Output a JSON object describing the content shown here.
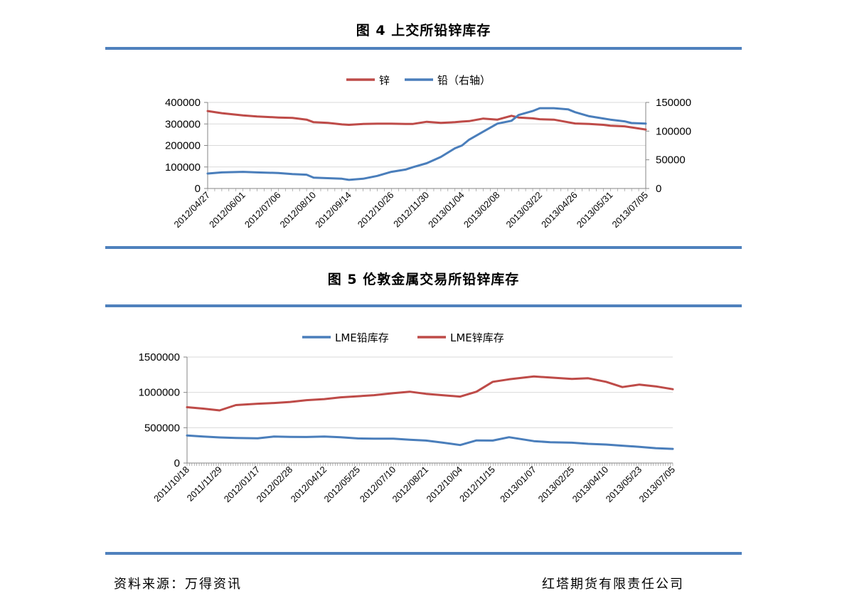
{
  "figure4": {
    "title": "图 4  上交所铅锌库存"
  },
  "figure5": {
    "title": "图 5  伦敦金属交易所铅锌库存"
  },
  "footer": {
    "source": "资料来源：万得资讯",
    "company": "红塔期货有限责任公司"
  },
  "colors": {
    "rule": "#4f81bd",
    "series_blue": "#4a7ebb",
    "series_red": "#be4b48",
    "grid": "#d9d9d9",
    "axis": "#868686"
  },
  "chart_data": [
    {
      "type": "line",
      "title": "",
      "legend_position": "top",
      "grid": true,
      "x_ticks": [
        "2012/04/27",
        "2012/06/01",
        "2012/07/06",
        "2012/08/10",
        "2012/09/14",
        "2012/10/26",
        "2012/11/30",
        "2013/01/04",
        "2013/02/08",
        "2013/03/22",
        "2013/04/26",
        "2013/05/31",
        "2013/07/05"
      ],
      "y_left": {
        "ticks": [
          "0",
          "100000",
          "200000",
          "300000",
          "400000"
        ],
        "lim": [
          0,
          400000
        ]
      },
      "y_right": {
        "ticks": [
          "0",
          "50000",
          "100000",
          "150000"
        ],
        "lim": [
          0,
          150000
        ]
      },
      "series": [
        {
          "name": "锌",
          "axis": "left",
          "color": "#be4b48",
          "x": [
            "2012/04/27",
            "2012/05/11",
            "2012/06/01",
            "2012/06/15",
            "2012/07/06",
            "2012/07/20",
            "2012/08/03",
            "2012/08/10",
            "2012/08/24",
            "2012/09/07",
            "2012/09/14",
            "2012/09/28",
            "2012/10/12",
            "2012/10/26",
            "2012/11/09",
            "2012/11/16",
            "2012/11/30",
            "2012/12/14",
            "2012/12/28",
            "2013/01/04",
            "2013/01/11",
            "2013/01/25",
            "2013/02/08",
            "2013/02/22",
            "2013/03/01",
            "2013/03/15",
            "2013/03/22",
            "2013/04/05",
            "2013/04/19",
            "2013/04/26",
            "2013/05/10",
            "2013/05/24",
            "2013/05/31",
            "2013/06/14",
            "2013/06/21",
            "2013/07/05"
          ],
          "y": [
            360000,
            350000,
            340000,
            335000,
            330000,
            328000,
            320000,
            308000,
            305000,
            298000,
            296000,
            300000,
            301000,
            301000,
            300000,
            300000,
            310000,
            305000,
            308000,
            311000,
            313000,
            325000,
            320000,
            338000,
            330000,
            326000,
            322000,
            320000,
            308000,
            302000,
            300000,
            296000,
            292000,
            289000,
            284000,
            274000
          ]
        },
        {
          "name": "铅（右轴）",
          "axis": "right",
          "color": "#4a7ebb",
          "x": [
            "2012/04/27",
            "2012/05/11",
            "2012/06/01",
            "2012/06/15",
            "2012/07/06",
            "2012/07/20",
            "2012/08/03",
            "2012/08/10",
            "2012/08/24",
            "2012/09/07",
            "2012/09/14",
            "2012/09/28",
            "2012/10/12",
            "2012/10/26",
            "2012/11/09",
            "2012/11/16",
            "2012/11/30",
            "2012/12/14",
            "2012/12/28",
            "2013/01/04",
            "2013/01/11",
            "2013/01/25",
            "2013/02/08",
            "2013/02/22",
            "2013/03/01",
            "2013/03/15",
            "2013/03/22",
            "2013/04/05",
            "2013/04/19",
            "2013/04/26",
            "2013/05/10",
            "2013/05/24",
            "2013/05/31",
            "2013/06/14",
            "2013/06/21",
            "2013/07/05"
          ],
          "y": [
            26000,
            28000,
            29000,
            28000,
            27000,
            25000,
            24000,
            19000,
            18000,
            17000,
            15000,
            17000,
            22000,
            29000,
            33000,
            37000,
            44000,
            55000,
            70000,
            75000,
            85000,
            99000,
            113000,
            118000,
            128000,
            135000,
            140000,
            140000,
            138000,
            133000,
            126000,
            122000,
            120000,
            117000,
            114000,
            113000
          ]
        }
      ]
    },
    {
      "type": "line",
      "title": "",
      "legend_position": "top",
      "grid": true,
      "x_ticks": [
        "2011/10/18",
        "2011/11/29",
        "2012/01/17",
        "2012/02/28",
        "2012/04/12",
        "2012/05/25",
        "2012/07/10",
        "2012/08/21",
        "2012/10/04",
        "2012/11/15",
        "2013/01/07",
        "2013/02/25",
        "2013/04/10",
        "2013/05/23",
        "2013/07/05"
      ],
      "y": {
        "ticks": [
          "0",
          "500000",
          "1000000",
          "1500000"
        ],
        "lim": [
          0,
          1500000
        ]
      },
      "series": [
        {
          "name": "LME铅库存",
          "color": "#4a7ebb",
          "x": [
            "2011/10/18",
            "2011/11/08",
            "2011/11/29",
            "2011/12/20",
            "2012/01/17",
            "2012/02/07",
            "2012/02/28",
            "2012/03/20",
            "2012/04/12",
            "2012/05/03",
            "2012/05/25",
            "2012/06/15",
            "2012/07/10",
            "2012/07/31",
            "2012/08/21",
            "2012/09/11",
            "2012/10/04",
            "2012/10/25",
            "2012/11/15",
            "2012/12/06",
            "2013/01/07",
            "2013/01/28",
            "2013/02/25",
            "2013/03/18",
            "2013/04/10",
            "2013/05/01",
            "2013/05/23",
            "2013/06/13",
            "2013/07/05"
          ],
          "y": [
            390000,
            375000,
            362000,
            355000,
            350000,
            375000,
            370000,
            368000,
            375000,
            365000,
            348000,
            345000,
            345000,
            330000,
            318000,
            290000,
            255000,
            320000,
            318000,
            365000,
            310000,
            295000,
            288000,
            272000,
            262000,
            246000,
            230000,
            210000,
            200000
          ]
        },
        {
          "name": "LME锌库存",
          "color": "#be4b48",
          "x": [
            "2011/10/18",
            "2011/11/08",
            "2011/11/29",
            "2011/12/20",
            "2012/01/17",
            "2012/02/07",
            "2012/02/28",
            "2012/03/20",
            "2012/04/12",
            "2012/05/03",
            "2012/05/25",
            "2012/06/15",
            "2012/07/10",
            "2012/07/31",
            "2012/08/21",
            "2012/09/11",
            "2012/10/04",
            "2012/10/25",
            "2012/11/15",
            "2012/12/06",
            "2013/01/07",
            "2013/01/28",
            "2013/02/25",
            "2013/03/18",
            "2013/04/10",
            "2013/05/01",
            "2013/05/23",
            "2013/06/13",
            "2013/07/05"
          ],
          "y": [
            790000,
            770000,
            745000,
            820000,
            840000,
            850000,
            865000,
            890000,
            905000,
            930000,
            945000,
            960000,
            990000,
            1010000,
            980000,
            960000,
            940000,
            1010000,
            1150000,
            1185000,
            1225000,
            1210000,
            1190000,
            1200000,
            1150000,
            1075000,
            1110000,
            1085000,
            1045000
          ]
        }
      ]
    }
  ]
}
